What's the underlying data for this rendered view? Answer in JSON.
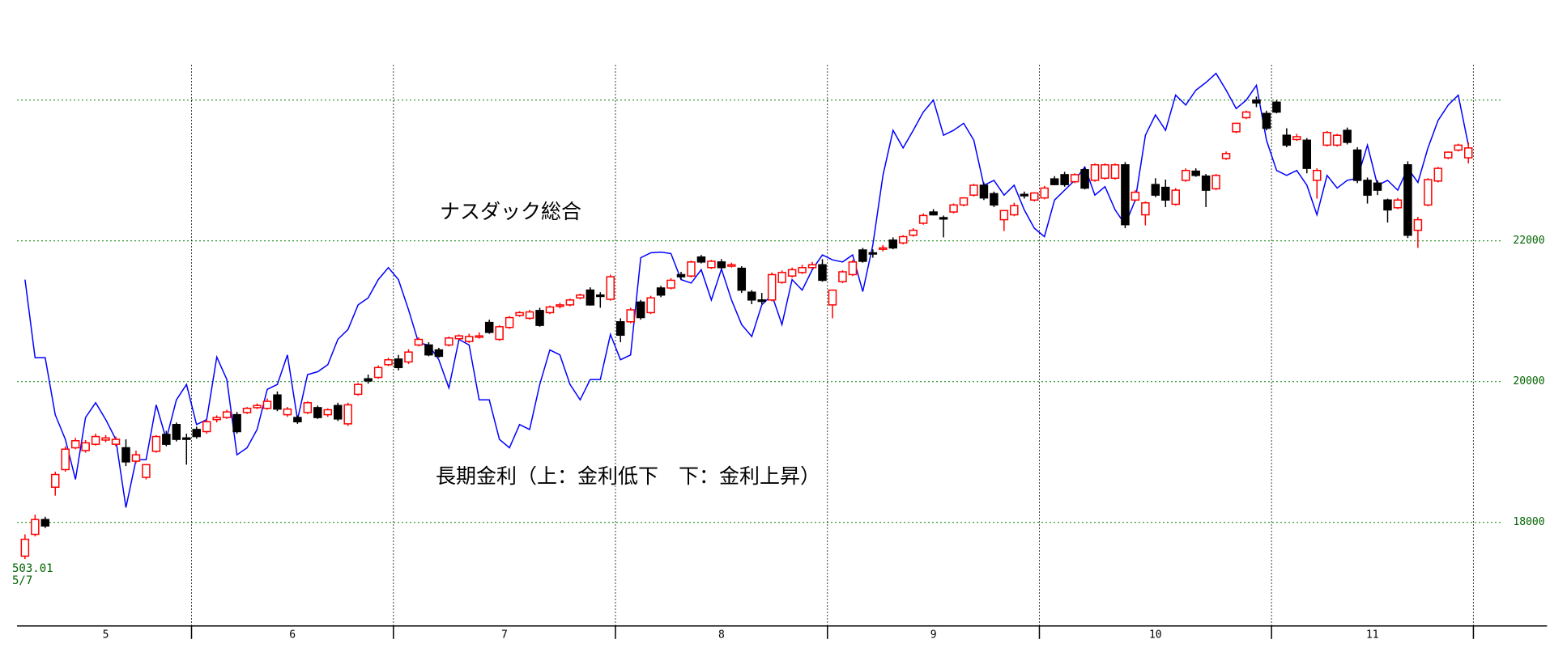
{
  "chart_data": {
    "type": "candlestick",
    "x": [
      "5",
      "5",
      "5",
      "5",
      "5",
      "5",
      "5",
      "5",
      "5",
      "5",
      "5",
      "5",
      "5",
      "5",
      "5",
      "5",
      "5",
      "6",
      "6",
      "6",
      "6",
      "6",
      "6",
      "6",
      "6",
      "6",
      "6",
      "6",
      "6",
      "6",
      "6",
      "6",
      "6",
      "6",
      "6",
      "6",
      "6",
      "7",
      "7",
      "7",
      "7",
      "7",
      "7",
      "7",
      "7",
      "7",
      "7",
      "7",
      "7",
      "7",
      "7",
      "7",
      "7",
      "7",
      "7",
      "7",
      "7",
      "7",
      "7",
      "8",
      "8",
      "8",
      "8",
      "8",
      "8",
      "8",
      "8",
      "8",
      "8",
      "8",
      "8",
      "8",
      "8",
      "8",
      "8",
      "8",
      "8",
      "8",
      "8",
      "8",
      "9",
      "9",
      "9",
      "9",
      "9",
      "9",
      "9",
      "9",
      "9",
      "9",
      "9",
      "9",
      "9",
      "9",
      "9",
      "9",
      "9",
      "9",
      "9",
      "9",
      "9",
      "10",
      "10",
      "10",
      "10",
      "10",
      "10",
      "10",
      "10",
      "10",
      "10",
      "10",
      "10",
      "10",
      "10",
      "10",
      "10",
      "10",
      "10",
      "10",
      "10",
      "10",
      "10",
      "10",
      "11",
      "11",
      "11",
      "11",
      "11",
      "11",
      "11",
      "11",
      "11",
      "11",
      "11",
      "11",
      "11",
      "11",
      "11",
      "11",
      "11",
      "11",
      "11",
      "11"
    ],
    "series": [
      {
        "name": "ナスダック総合",
        "type": "candlestick",
        "up_color": "#ff0000",
        "down_color": "#000000",
        "ohlc": [
          [
            17520,
            17830,
            17480,
            17760
          ],
          [
            17830,
            18110,
            17800,
            18040
          ],
          [
            18040,
            18080,
            17920,
            17950
          ],
          [
            18500,
            18720,
            18380,
            18680
          ],
          [
            18750,
            19080,
            18720,
            19040
          ],
          [
            19060,
            19200,
            19040,
            19160
          ],
          [
            19020,
            19170,
            18990,
            19130
          ],
          [
            19110,
            19260,
            19090,
            19220
          ],
          [
            19170,
            19240,
            19140,
            19200
          ],
          [
            19110,
            19220,
            19080,
            19180
          ],
          [
            19060,
            19180,
            18800,
            18860
          ],
          [
            18870,
            19020,
            18840,
            18960
          ],
          [
            18640,
            18830,
            18610,
            18820
          ],
          [
            19010,
            19240,
            18990,
            19220
          ],
          [
            19250,
            19300,
            19080,
            19110
          ],
          [
            19390,
            19420,
            19150,
            19180
          ],
          [
            19200,
            19260,
            18820,
            19180
          ],
          [
            19320,
            19360,
            19190,
            19220
          ],
          [
            19290,
            19460,
            19260,
            19430
          ],
          [
            19460,
            19520,
            19420,
            19490
          ],
          [
            19490,
            19600,
            19470,
            19570
          ],
          [
            19530,
            19570,
            19260,
            19290
          ],
          [
            19560,
            19640,
            19540,
            19620
          ],
          [
            19630,
            19690,
            19610,
            19660
          ],
          [
            19620,
            19760,
            19600,
            19720
          ],
          [
            19810,
            19860,
            19580,
            19610
          ],
          [
            19530,
            19640,
            19500,
            19610
          ],
          [
            19490,
            19520,
            19400,
            19430
          ],
          [
            19560,
            19720,
            19540,
            19700
          ],
          [
            19630,
            19660,
            19470,
            19490
          ],
          [
            19530,
            19620,
            19500,
            19600
          ],
          [
            19660,
            19700,
            19440,
            19470
          ],
          [
            19400,
            19700,
            19370,
            19670
          ],
          [
            19820,
            19980,
            19800,
            19960
          ],
          [
            20040,
            20100,
            19970,
            20010
          ],
          [
            20060,
            20230,
            20040,
            20200
          ],
          [
            20240,
            20340,
            20220,
            20310
          ],
          [
            20320,
            20380,
            20160,
            20200
          ],
          [
            20280,
            20460,
            20250,
            20420
          ],
          [
            20520,
            20630,
            20500,
            20600
          ],
          [
            20520,
            20560,
            20360,
            20380
          ],
          [
            20450,
            20480,
            20340,
            20360
          ],
          [
            20520,
            20640,
            20500,
            20620
          ],
          [
            20610,
            20670,
            20590,
            20650
          ],
          [
            20570,
            20680,
            20550,
            20640
          ],
          [
            20630,
            20700,
            20610,
            20650
          ],
          [
            20840,
            20880,
            20680,
            20700
          ],
          [
            20600,
            20800,
            20580,
            20780
          ],
          [
            20770,
            20930,
            20750,
            20910
          ],
          [
            20940,
            21000,
            20920,
            20980
          ],
          [
            20900,
            21020,
            20880,
            20990
          ],
          [
            21010,
            21050,
            20780,
            20800
          ],
          [
            20980,
            21080,
            20960,
            21060
          ],
          [
            21070,
            21120,
            21040,
            21090
          ],
          [
            21090,
            21180,
            21070,
            21160
          ],
          [
            21190,
            21250,
            21170,
            21230
          ],
          [
            21300,
            21340,
            21080,
            21090
          ],
          [
            21230,
            21270,
            21050,
            21210
          ],
          [
            21170,
            21520,
            21150,
            21490
          ],
          [
            20850,
            20900,
            20560,
            20660
          ],
          [
            20850,
            21050,
            20830,
            21020
          ],
          [
            21130,
            21160,
            20880,
            20910
          ],
          [
            20980,
            21220,
            20960,
            21190
          ],
          [
            21330,
            21360,
            21200,
            21230
          ],
          [
            21330,
            21470,
            21310,
            21440
          ],
          [
            21520,
            21560,
            21450,
            21490
          ],
          [
            21500,
            21720,
            21480,
            21700
          ],
          [
            21770,
            21800,
            21680,
            21700
          ],
          [
            21620,
            21730,
            21600,
            21710
          ],
          [
            21700,
            21740,
            21600,
            21620
          ],
          [
            21640,
            21690,
            21620,
            21660
          ],
          [
            21610,
            21640,
            21260,
            21300
          ],
          [
            21270,
            21300,
            21100,
            21160
          ],
          [
            21160,
            21260,
            21100,
            21140
          ],
          [
            21160,
            21550,
            21140,
            21520
          ],
          [
            21410,
            21580,
            21390,
            21550
          ],
          [
            21500,
            21620,
            21480,
            21590
          ],
          [
            21550,
            21660,
            21530,
            21620
          ],
          [
            21620,
            21700,
            21600,
            21660
          ],
          [
            21660,
            21740,
            21420,
            21440
          ],
          [
            21090,
            21310,
            20900,
            21300
          ],
          [
            21420,
            21580,
            21400,
            21560
          ],
          [
            21520,
            21730,
            21500,
            21700
          ],
          [
            21870,
            21900,
            21690,
            21710
          ],
          [
            21830,
            21880,
            21760,
            21820
          ],
          [
            21880,
            21940,
            21850,
            21900
          ],
          [
            22010,
            22050,
            21880,
            21900
          ],
          [
            21970,
            22080,
            21950,
            22060
          ],
          [
            22080,
            22180,
            22060,
            22150
          ],
          [
            22250,
            22390,
            22230,
            22360
          ],
          [
            22410,
            22450,
            22360,
            22370
          ],
          [
            22330,
            22360,
            22050,
            22310
          ],
          [
            22410,
            22530,
            22390,
            22510
          ],
          [
            22510,
            22620,
            22490,
            22610
          ],
          [
            22650,
            22810,
            22630,
            22790
          ],
          [
            22790,
            22830,
            22580,
            22610
          ],
          [
            22670,
            22700,
            22480,
            22510
          ],
          [
            22300,
            22440,
            22140,
            22430
          ],
          [
            22370,
            22540,
            22350,
            22500
          ],
          [
            22660,
            22700,
            22600,
            22640
          ],
          [
            22580,
            22690,
            22560,
            22680
          ],
          [
            22610,
            22780,
            22590,
            22750
          ],
          [
            22880,
            22920,
            22790,
            22800
          ],
          [
            22940,
            22980,
            22770,
            22800
          ],
          [
            22840,
            22960,
            22820,
            22940
          ],
          [
            23010,
            23040,
            22730,
            22750
          ],
          [
            22860,
            23100,
            22840,
            23080
          ],
          [
            22890,
            23100,
            22870,
            23080
          ],
          [
            22890,
            23100,
            22870,
            23080
          ],
          [
            23080,
            23120,
            22180,
            22230
          ],
          [
            22580,
            22720,
            22560,
            22690
          ],
          [
            22370,
            22560,
            22220,
            22540
          ],
          [
            22800,
            22890,
            22620,
            22650
          ],
          [
            22760,
            22870,
            22480,
            22580
          ],
          [
            22520,
            22750,
            22500,
            22720
          ],
          [
            22860,
            23030,
            22840,
            23000
          ],
          [
            22990,
            23030,
            22910,
            22930
          ],
          [
            22920,
            22950,
            22480,
            22720
          ],
          [
            22740,
            22950,
            22720,
            22930
          ],
          [
            23170,
            23270,
            23150,
            23240
          ],
          [
            23550,
            23680,
            23530,
            23670
          ],
          [
            23750,
            23850,
            23730,
            23830
          ],
          [
            24000,
            24050,
            23900,
            23960
          ],
          [
            23810,
            23850,
            23570,
            23600
          ],
          [
            23970,
            24000,
            23810,
            23830
          ],
          [
            23500,
            23600,
            23330,
            23360
          ],
          [
            23440,
            23520,
            23420,
            23480
          ],
          [
            23430,
            23460,
            22960,
            23030
          ],
          [
            22860,
            23030,
            22600,
            23000
          ],
          [
            23360,
            23560,
            23340,
            23540
          ],
          [
            23360,
            23520,
            23340,
            23500
          ],
          [
            23570,
            23610,
            23370,
            23400
          ],
          [
            23290,
            23330,
            22820,
            22860
          ],
          [
            22860,
            22900,
            22530,
            22650
          ],
          [
            22820,
            22860,
            22650,
            22720
          ],
          [
            22580,
            22600,
            22260,
            22440
          ],
          [
            22470,
            22610,
            22450,
            22580
          ],
          [
            23080,
            23130,
            22040,
            22080
          ],
          [
            22150,
            22340,
            21900,
            22300
          ],
          [
            22510,
            22890,
            22490,
            22870
          ],
          [
            22850,
            23050,
            22830,
            23030
          ],
          [
            23180,
            23270,
            23160,
            23260
          ],
          [
            23290,
            23380,
            23270,
            23360
          ],
          [
            23180,
            23400,
            23100,
            23320
          ]
        ]
      },
      {
        "name": "長期金利（上：金利低下　下：金利上昇）",
        "type": "line",
        "color": "#0000ff",
        "values": [
          21450,
          20340,
          20340,
          19530,
          19180,
          18610,
          19490,
          19700,
          19460,
          19180,
          18210,
          18890,
          18890,
          19670,
          19180,
          19740,
          19960,
          19390,
          19460,
          20350,
          20030,
          18960,
          19060,
          19320,
          19890,
          19960,
          20380,
          19460,
          20100,
          20140,
          20240,
          20600,
          20740,
          21090,
          21190,
          21450,
          21620,
          21450,
          21020,
          20550,
          20520,
          20310,
          19910,
          20600,
          20520,
          19740,
          19740,
          19180,
          19060,
          19390,
          19320,
          19960,
          20450,
          20380,
          19960,
          19740,
          20030,
          20030,
          20670,
          20310,
          20380,
          21760,
          21830,
          21840,
          21820,
          21450,
          21400,
          21590,
          21160,
          21600,
          21160,
          20810,
          20640,
          21090,
          21230,
          20810,
          21450,
          21300,
          21590,
          21800,
          21730,
          21700,
          21800,
          21280,
          21940,
          22930,
          23570,
          23320,
          23570,
          23830,
          24000,
          23500,
          23570,
          23670,
          23430,
          22790,
          22860,
          22650,
          22790,
          22440,
          22180,
          22060,
          22580,
          22720,
          22860,
          23050,
          22650,
          22770,
          22440,
          22230,
          22580,
          23500,
          23790,
          23570,
          24070,
          23930,
          24140,
          24250,
          24380,
          24140,
          23880,
          24000,
          24210,
          23430,
          23000,
          22930,
          23000,
          22790,
          22370,
          22930,
          22750,
          22860,
          22890,
          23360,
          22790,
          22860,
          22720,
          23030,
          22830,
          23320,
          23710,
          23930,
          24070,
          23360
        ]
      }
    ],
    "ylim": [
      16500,
      24500
    ],
    "yticks": [
      18000,
      20000,
      22000
    ],
    "extra_grid": [
      24000
    ],
    "grid": true,
    "grid_color": "#008000",
    "annotations": [
      "503.01",
      "5/7"
    ]
  }
}
